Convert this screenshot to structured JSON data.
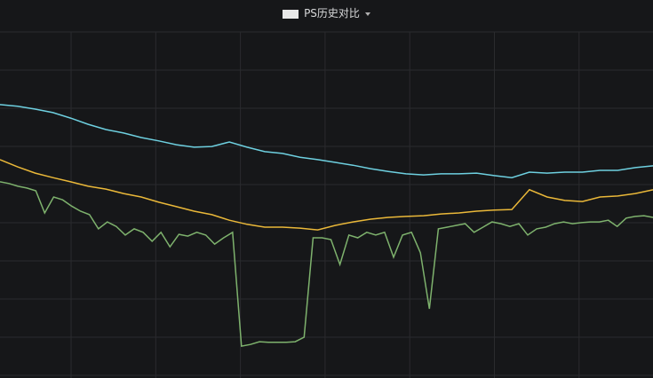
{
  "chart_data": {
    "type": "line",
    "title": "PS历史对比",
    "ylim": [
      0,
      100
    ],
    "series": [
      {
        "color": "#6ed0e0",
        "values": [
          79,
          78.5,
          77.7,
          76.7,
          75.1,
          73.3,
          71.8,
          70.8,
          69.5,
          68.5,
          67.4,
          66.7,
          66.9,
          68.2,
          66.7,
          65.4,
          64.9,
          63.8,
          63.1,
          62.3,
          61.5,
          60.5,
          59.7,
          59,
          58.7,
          59,
          59,
          59.2,
          58.5,
          57.9,
          59.5,
          59.2,
          59.5,
          59.5,
          60,
          60,
          60.8,
          61.3
        ]
      },
      {
        "color": "#eab839",
        "values": [
          63.1,
          61,
          59.2,
          57.9,
          56.7,
          55.4,
          54.6,
          53.3,
          52.3,
          50.8,
          49.5,
          48.2,
          47.2,
          45.6,
          44.4,
          43.6,
          43.6,
          43.3,
          42.8,
          44.1,
          45.1,
          45.9,
          46.4,
          46.7,
          46.9,
          47.4,
          47.7,
          48.2,
          48.5,
          48.7,
          54.4,
          52.3,
          51.3,
          51,
          52.3,
          52.6,
          53.3,
          54.4
        ]
      },
      {
        "color": "#7eb26d",
        "values": [
          56.7,
          56.2,
          55.4,
          54.9,
          54.1,
          47.7,
          52.3,
          51.5,
          49.7,
          48.2,
          47.2,
          43.1,
          45.1,
          43.8,
          41.3,
          43.1,
          42.1,
          39.5,
          42.1,
          37.9,
          41.5,
          41,
          42.1,
          41.3,
          38.7,
          40.5,
          42.1,
          9.2,
          9.7,
          10.5,
          10.3,
          10.3,
          10.3,
          10.5,
          11.8,
          40.5,
          40.5,
          40,
          32.8,
          41.3,
          40.5,
          42.1,
          41.3,
          42.1,
          34.9,
          41.3,
          42.1,
          36.2,
          20,
          43.1,
          43.6,
          44.1,
          44.6,
          42.1,
          43.6,
          45.1,
          44.6,
          43.8,
          44.6,
          41.3,
          43.1,
          43.6,
          44.6,
          45.1,
          44.6,
          44.9,
          45.1,
          45.1,
          45.6,
          43.8,
          46.2,
          46.7,
          46.9,
          46.4
        ]
      }
    ]
  }
}
